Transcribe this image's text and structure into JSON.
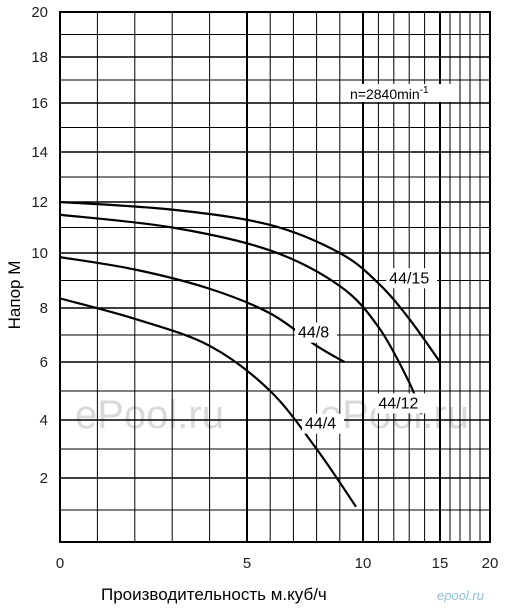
{
  "chart_data": {
    "type": "line",
    "xlabel": "Производительность м.куб/ч",
    "ylabel": "Напор М",
    "xlim": [
      0,
      20
    ],
    "ylim": [
      0,
      20
    ],
    "x_ticks": [
      "0",
      "5",
      "10",
      "15",
      "20"
    ],
    "y_ticks": [
      "2",
      "4",
      "6",
      "8",
      "10",
      "12",
      "14",
      "16",
      "18",
      "20"
    ],
    "grid": true,
    "annotation": "n=2840min",
    "annotation_sup": "-1",
    "series": [
      {
        "name": "44/4",
        "x": [
          0,
          2,
          4,
          6,
          8,
          9.7
        ],
        "y": [
          8.35,
          7.6,
          6.6,
          5.0,
          3.0,
          1.1
        ]
      },
      {
        "name": "44/8",
        "x": [
          0,
          2,
          4,
          6,
          8,
          9.2
        ],
        "y": [
          9.85,
          9.4,
          8.7,
          7.8,
          6.6,
          6.0
        ]
      },
      {
        "name": "44/12",
        "x": [
          0,
          3,
          6,
          9,
          11,
          13,
          13.8
        ],
        "y": [
          11.5,
          11.0,
          10.1,
          8.8,
          7.3,
          5.3,
          4.2
        ]
      },
      {
        "name": "44/15",
        "x": [
          0,
          3,
          6,
          9,
          11,
          13,
          15
        ],
        "y": [
          12.0,
          11.7,
          11.1,
          10.0,
          8.9,
          7.6,
          6.0
        ]
      }
    ],
    "label_positions": [
      {
        "series": "44/4",
        "x": 7.5,
        "y": 3.7
      },
      {
        "series": "44/8",
        "x": 7.2,
        "y": 6.9
      },
      {
        "series": "44/12",
        "x": 11.0,
        "y": 4.4
      },
      {
        "series": "44/15",
        "x": 11.7,
        "y": 8.9
      }
    ]
  },
  "watermark": {
    "left": "ePool.ru",
    "right": "ePool.ru",
    "edge": "u",
    "logo": "epool.ru"
  }
}
